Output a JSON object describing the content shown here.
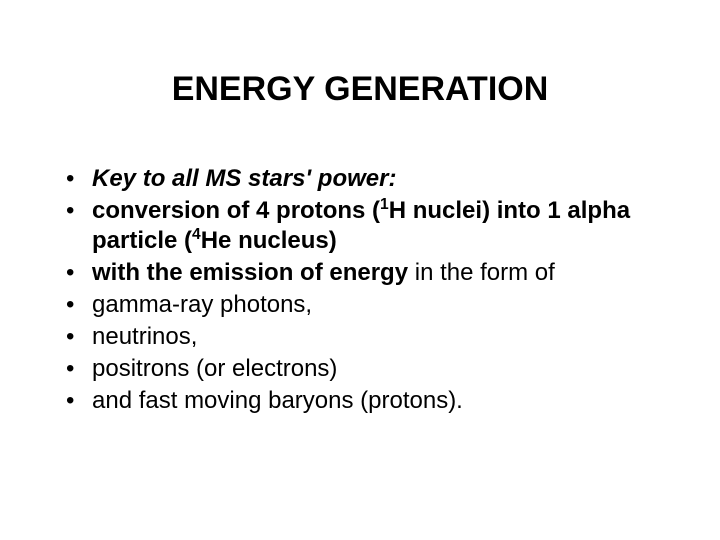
{
  "background_color": "#ffffff",
  "text_color": "#000000",
  "title": {
    "text": "ENERGY GENERATION",
    "font_size": 34,
    "font_weight": "bold",
    "align": "center"
  },
  "bullets": {
    "font_size": 24,
    "marker": "•",
    "items": [
      {
        "spans": [
          {
            "text": "Key to all MS stars' power:",
            "style": "bold-italic"
          }
        ]
      },
      {
        "spans": [
          {
            "text": "conversion of 4 protons (",
            "style": "bold"
          },
          {
            "text": "1",
            "style": "bold",
            "sup": true
          },
          {
            "text": "H nuclei) into 1 alpha particle (",
            "style": "bold"
          },
          {
            "text": "4",
            "style": "bold",
            "sup": true
          },
          {
            "text": "He nucleus)",
            "style": "bold"
          }
        ]
      },
      {
        "spans": [
          {
            "text": "with the emission of energy",
            "style": "bold"
          },
          {
            "text": " in the form of",
            "style": "normal"
          }
        ]
      },
      {
        "spans": [
          {
            "text": "gamma-ray photons,",
            "style": "normal"
          }
        ]
      },
      {
        "spans": [
          {
            "text": "neutrinos,",
            "style": "normal"
          }
        ]
      },
      {
        "spans": [
          {
            "text": "positrons (or electrons)",
            "style": "normal"
          }
        ]
      },
      {
        "spans": [
          {
            "text": "and fast moving baryons (protons).",
            "style": "normal"
          }
        ]
      }
    ]
  }
}
